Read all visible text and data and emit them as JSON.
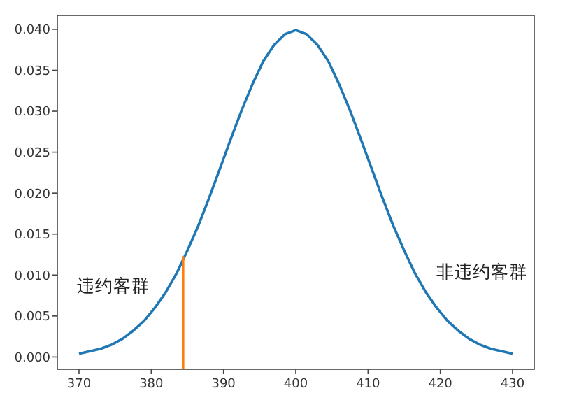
{
  "chart_data": {
    "type": "line",
    "xlim": [
      367,
      433
    ],
    "ylim": [
      -0.0015,
      0.0417
    ],
    "xticks": [
      370,
      380,
      390,
      400,
      410,
      420,
      430
    ],
    "yticks": [
      {
        "value": 0,
        "label": "0.000"
      },
      {
        "value": 0.005,
        "label": "0.005"
      },
      {
        "value": 0.01,
        "label": "0.010"
      },
      {
        "value": 0.015,
        "label": "0.015"
      },
      {
        "value": 0.02,
        "label": "0.020"
      },
      {
        "value": 0.025,
        "label": "0.025"
      },
      {
        "value": 0.03,
        "label": "0.030"
      },
      {
        "value": 0.035,
        "label": "0.035"
      },
      {
        "value": 0.04,
        "label": "0.040"
      }
    ],
    "grid": false,
    "series": [
      {
        "color": "#1f77b4",
        "x": [
          370,
          371.5,
          373,
          374.5,
          376,
          377.5,
          379,
          380.5,
          382,
          383.5,
          385,
          386.5,
          388,
          389.5,
          391,
          392.5,
          394,
          395.5,
          397,
          398.5,
          400,
          401.5,
          403,
          404.5,
          406,
          407.5,
          409,
          410.5,
          412,
          413.5,
          415,
          416.5,
          418,
          419.5,
          421,
          422.5,
          424,
          425.5,
          427,
          428.5,
          430
        ],
        "values": [
          0.0004,
          0.0007,
          0.001,
          0.0015,
          0.0022,
          0.0032,
          0.0044,
          0.006,
          0.0079,
          0.0102,
          0.013,
          0.016,
          0.0194,
          0.023,
          0.0266,
          0.0301,
          0.0333,
          0.0361,
          0.0381,
          0.0394,
          0.0399,
          0.0394,
          0.0381,
          0.0361,
          0.0333,
          0.0301,
          0.0266,
          0.023,
          0.0194,
          0.016,
          0.013,
          0.0102,
          0.0079,
          0.006,
          0.0044,
          0.0032,
          0.0022,
          0.0015,
          0.001,
          0.0007,
          0.0004
        ]
      },
      {
        "color": "#ff7f0e",
        "x": [
          384.4,
          384.4
        ],
        "values": [
          -0.0015,
          0.0123
        ]
      }
    ],
    "annotations": [
      "违约客群",
      "非违约客群"
    ]
  }
}
